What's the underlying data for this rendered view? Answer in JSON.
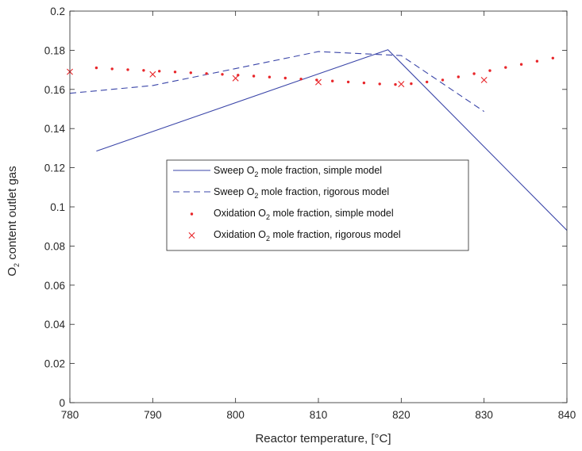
{
  "chart_data": {
    "type": "line",
    "xlabel": "Reactor temperature, [°C]",
    "ylabel": {
      "prefix": "O",
      "sub": "2",
      "suffix": " content outlet gas"
    },
    "xlim": [
      780,
      840
    ],
    "ylim": [
      0,
      0.2
    ],
    "xticks": [
      780,
      790,
      800,
      810,
      820,
      830,
      840
    ],
    "yticks": [
      0,
      0.02,
      0.04,
      0.06,
      0.08,
      0.1,
      0.12,
      0.14,
      0.16,
      0.18,
      0.2
    ],
    "xtick_labels": [
      "780",
      "790",
      "800",
      "810",
      "820",
      "830",
      "840"
    ],
    "ytick_labels": [
      "0",
      "0.02",
      "0.04",
      "0.06",
      "0.08",
      "0.1",
      "0.12",
      "0.14",
      "0.16",
      "0.18",
      "0.2"
    ],
    "grid": false,
    "legend_position": "center",
    "series": [
      {
        "name_parts": {
          "prefix": "Sweep O",
          "sub": "2",
          "suffix": " mole fraction, simple model"
        },
        "style": "solid",
        "color": "#3a45a8",
        "x": [
          783.2,
          818.4,
          840
        ],
        "y": [
          0.1285,
          0.1803,
          0.088
        ]
      },
      {
        "name_parts": {
          "prefix": "Sweep O",
          "sub": "2",
          "suffix": " mole fraction, rigorous model"
        },
        "style": "dashed",
        "color": "#3a45a8",
        "x": [
          780,
          790,
          810,
          820,
          830
        ],
        "y": [
          0.158,
          0.162,
          0.1793,
          0.1773,
          0.1487
        ]
      },
      {
        "name_parts": {
          "prefix": "Oxidation O",
          "sub": "2",
          "suffix": " mole fraction, simple model"
        },
        "style": "dot",
        "color": "#e8262a",
        "x": [
          783.2,
          785.1,
          787,
          788.9,
          790.8,
          792.7,
          794.6,
          796.5,
          798.4,
          800.3,
          802.2,
          804.1,
          806,
          807.9,
          809.8,
          811.7,
          813.6,
          815.5,
          817.4,
          819.3,
          821.2,
          823.1,
          825,
          826.9,
          828.8,
          830.7,
          832.6,
          834.5,
          836.4,
          838.3
        ],
        "y": [
          0.171,
          0.1705,
          0.1701,
          0.1697,
          0.1693,
          0.1689,
          0.1685,
          0.1681,
          0.1677,
          0.1673,
          0.1668,
          0.1663,
          0.1658,
          0.1653,
          0.1648,
          0.1643,
          0.1638,
          0.1633,
          0.1628,
          0.1625,
          0.1629,
          0.1638,
          0.1648,
          0.1664,
          0.168,
          0.1696,
          0.1712,
          0.1728,
          0.1744,
          0.176
        ]
      },
      {
        "name_parts": {
          "prefix": "Oxidation O",
          "sub": "2",
          "suffix": " mole fraction, rigorous model"
        },
        "style": "x",
        "color": "#e8262a",
        "x": [
          780,
          790,
          800,
          810,
          820,
          830
        ],
        "y": [
          0.169,
          0.1677,
          0.1657,
          0.1637,
          0.1627,
          0.1648
        ]
      }
    ]
  }
}
